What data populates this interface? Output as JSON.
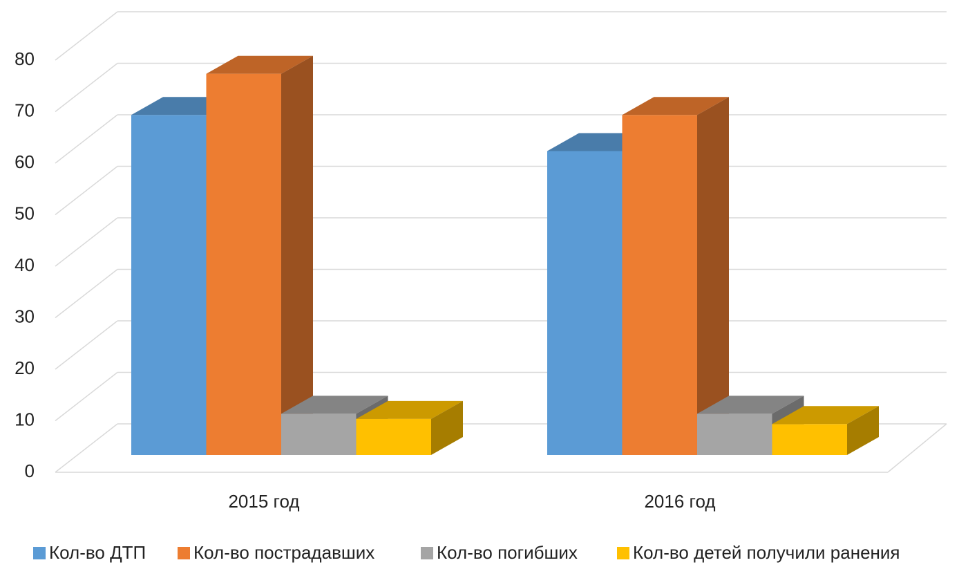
{
  "chart_data": {
    "type": "bar3d",
    "categories": [
      "2015 год",
      "2016 год"
    ],
    "series": [
      {
        "name": "Кол-во ДТП",
        "color": "#5b9bd5",
        "values": [
          66,
          59
        ]
      },
      {
        "name": "Кол-во пострадавших",
        "color": "#ed7d31",
        "values": [
          74,
          66
        ]
      },
      {
        "name": "Кол-во погибших",
        "color": "#a5a5a5",
        "values": [
          8,
          8
        ]
      },
      {
        "name": "Кол-во детей получили ранения",
        "color": "#ffc000",
        "values": [
          7,
          6
        ]
      }
    ],
    "ylim": [
      0,
      90
    ],
    "yticks": [
      0,
      10,
      20,
      30,
      40,
      50,
      60,
      70,
      80
    ],
    "grid": true,
    "legend": "bottom"
  }
}
